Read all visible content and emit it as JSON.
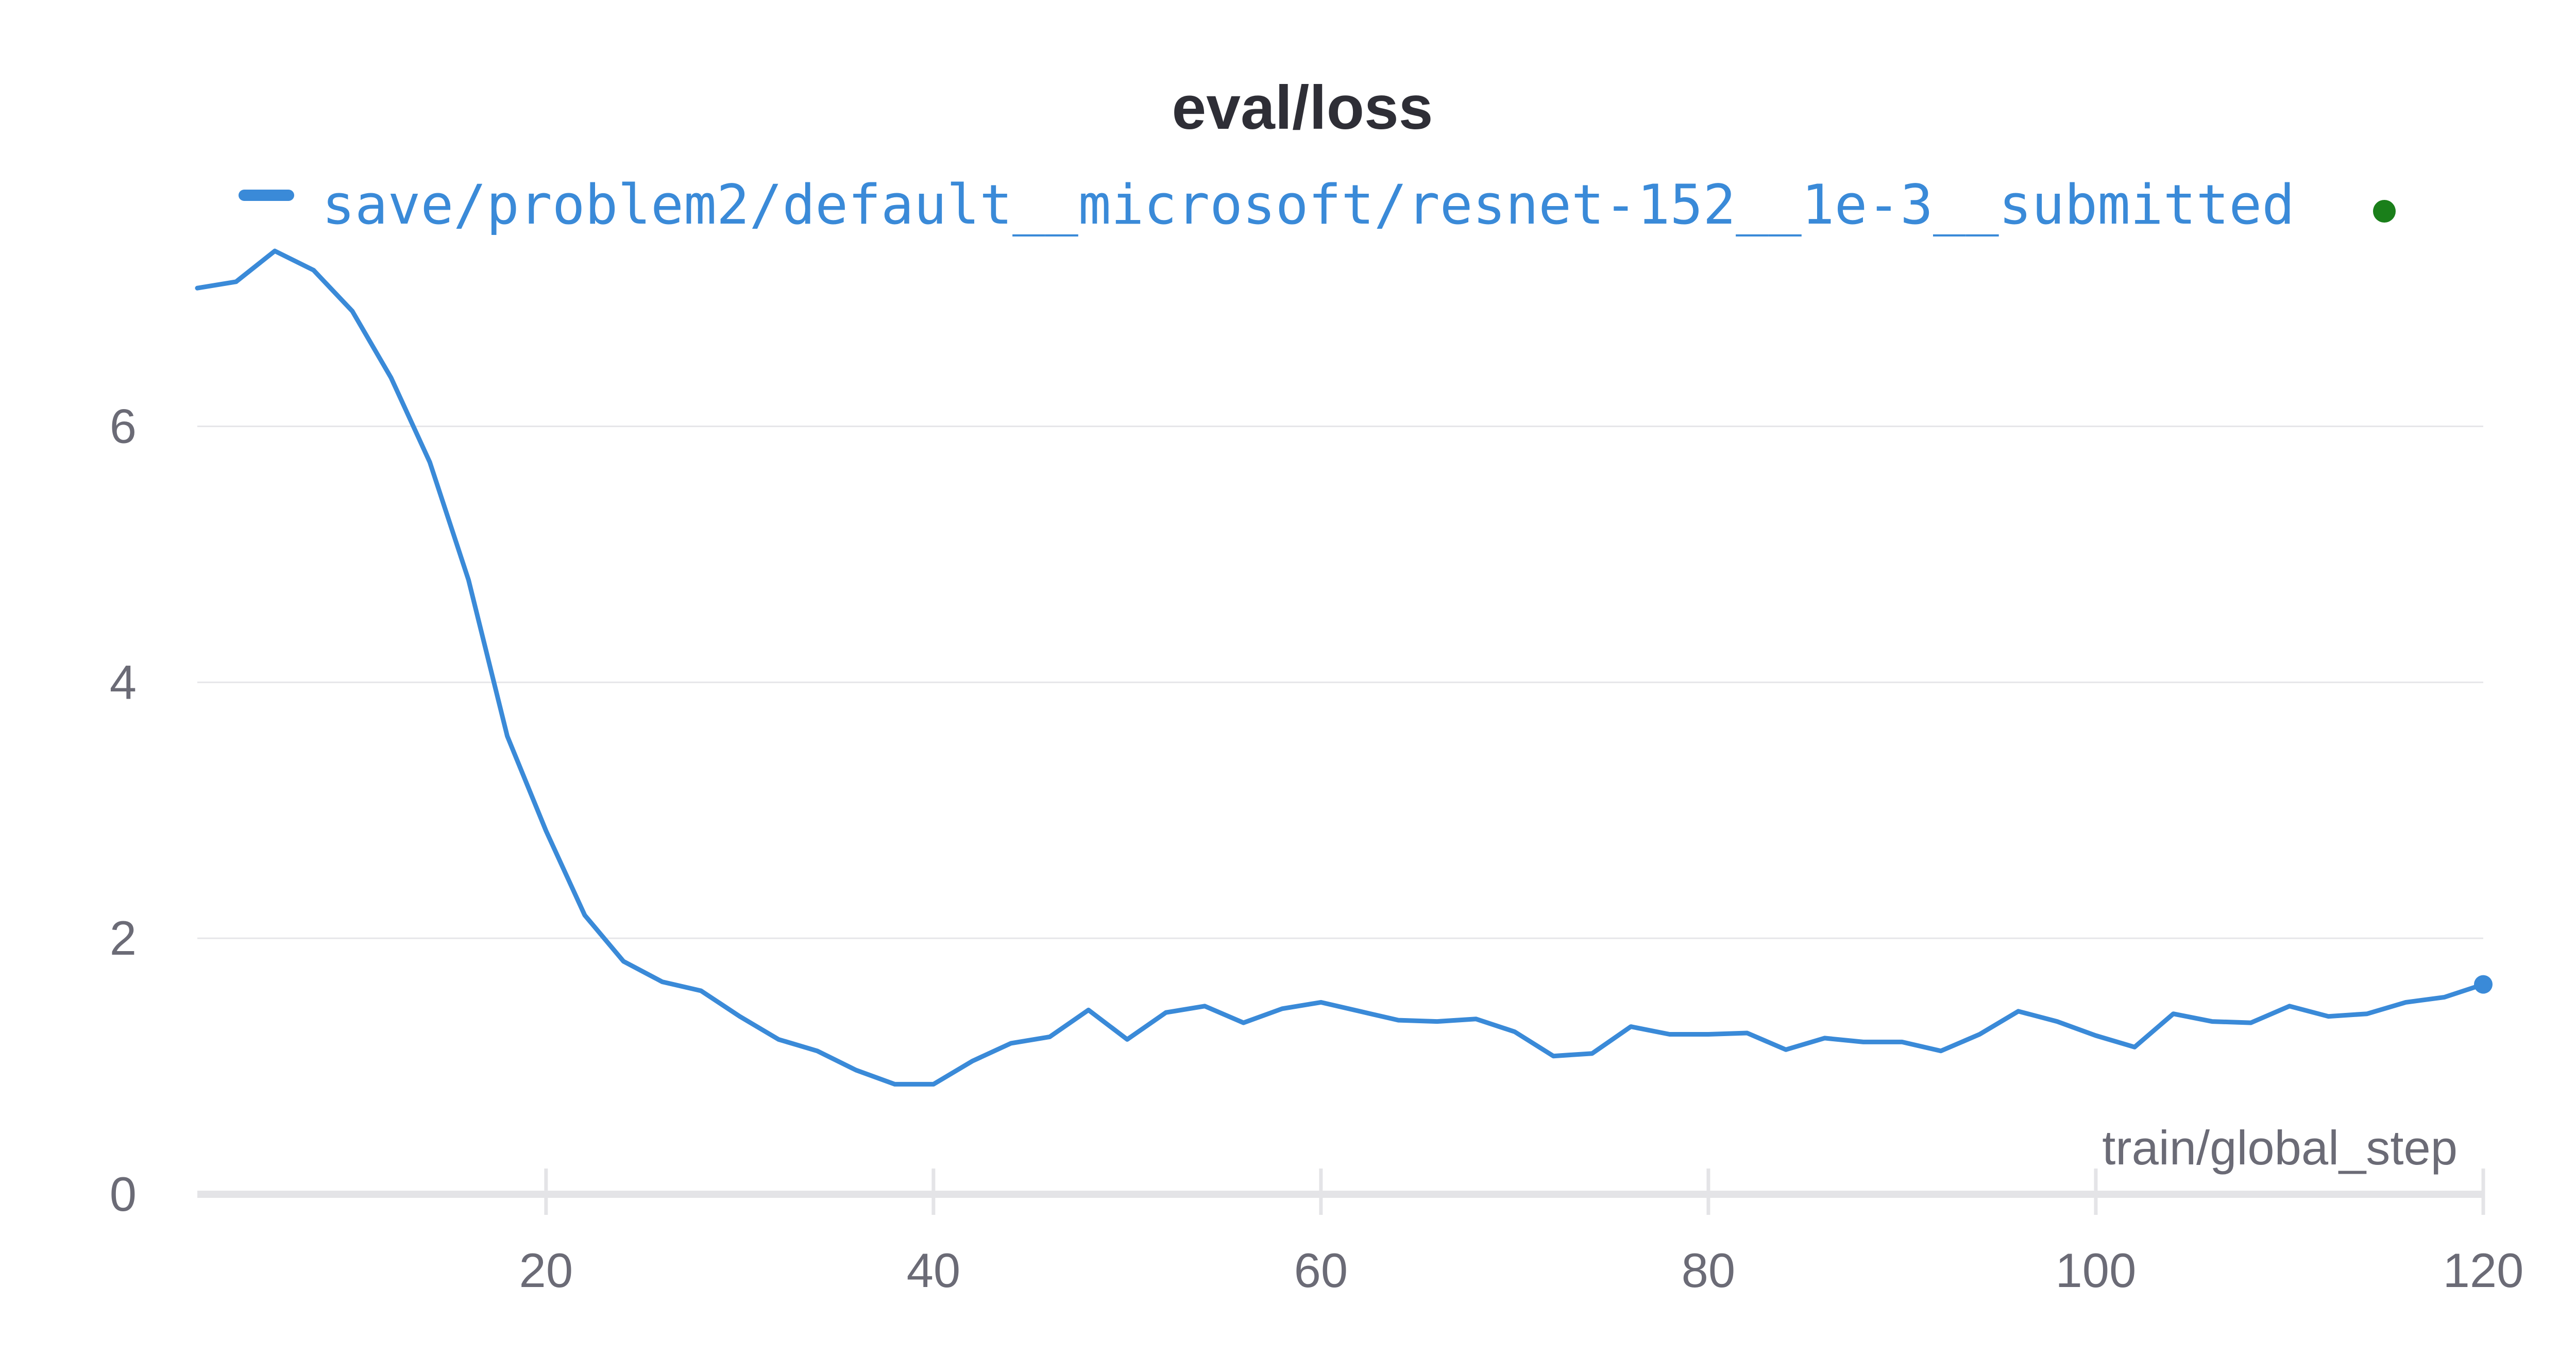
{
  "chart_data": {
    "type": "line",
    "title": "eval/loss",
    "xlabel": "train/global_step",
    "ylabel": "",
    "xlim": [
      2,
      120
    ],
    "ylim": [
      0,
      7.6
    ],
    "x_ticks": [
      20,
      40,
      60,
      80,
      100,
      120
    ],
    "y_ticks": [
      0,
      2,
      4,
      6
    ],
    "grid": true,
    "legend_position": "top",
    "status_dot_color": "#1a7f1a",
    "series": [
      {
        "name": "save/problem2/default__microsoft/resnet-152__1e-3__submitted",
        "color": "#3a8ad8",
        "x": [
          2,
          4,
          6,
          8,
          10,
          12,
          14,
          16,
          18,
          20,
          22,
          24,
          26,
          28,
          30,
          32,
          34,
          36,
          38,
          40,
          42,
          44,
          46,
          48,
          50,
          52,
          54,
          56,
          58,
          60,
          62,
          64,
          66,
          68,
          70,
          72,
          74,
          76,
          78,
          80,
          82,
          84,
          86,
          88,
          90,
          92,
          94,
          96,
          98,
          100,
          102,
          104,
          106,
          108,
          110,
          112,
          114,
          116,
          118,
          120
        ],
        "values": [
          7.08,
          7.13,
          7.37,
          7.22,
          6.9,
          6.38,
          5.72,
          4.8,
          3.58,
          2.84,
          2.18,
          1.82,
          1.66,
          1.59,
          1.39,
          1.21,
          1.12,
          0.97,
          0.86,
          0.86,
          1.04,
          1.18,
          1.23,
          1.44,
          1.21,
          1.42,
          1.47,
          1.34,
          1.45,
          1.5,
          1.43,
          1.36,
          1.35,
          1.37,
          1.27,
          1.08,
          1.1,
          1.31,
          1.25,
          1.25,
          1.26,
          1.13,
          1.22,
          1.19,
          1.19,
          1.12,
          1.25,
          1.43,
          1.35,
          1.24,
          1.15,
          1.41,
          1.35,
          1.34,
          1.47,
          1.39,
          1.41,
          1.5,
          1.54,
          1.64
        ]
      }
    ]
  }
}
